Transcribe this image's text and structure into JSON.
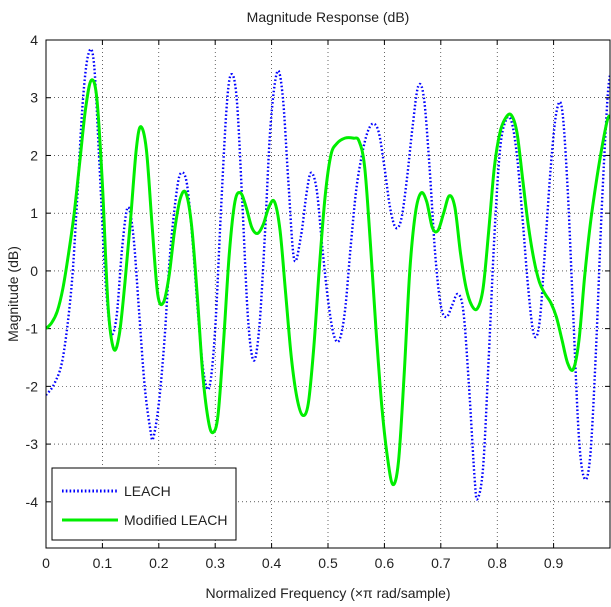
{
  "chart_data": {
    "type": "line",
    "title": "Magnitude Response (dB)",
    "xlabel": "Normalized Frequency (×π rad/sample)",
    "ylabel": "Magnitude (dB)",
    "xlim": [
      0,
      1
    ],
    "ylim": [
      -4.8,
      4
    ],
    "x_ticks": [
      0,
      0.1,
      0.2,
      0.3,
      0.4,
      0.5,
      0.6,
      0.7,
      0.8,
      0.9
    ],
    "x_tick_labels": [
      "0",
      "0.1",
      "0.2",
      "0.3",
      "0.4",
      "0.5",
      "0.6",
      "0.7",
      "0.8",
      "0.9"
    ],
    "y_ticks": [
      4,
      3,
      2,
      1,
      0,
      -1,
      -2,
      -3,
      -4
    ],
    "y_tick_labels": [
      "4",
      "3",
      "2",
      "1",
      "0",
      "-1",
      "-2",
      "-3",
      "-4"
    ],
    "grid": true,
    "legend_position": "bottom-left",
    "series": [
      {
        "name": "LEACH",
        "color": "#0000ff",
        "style": "dotted",
        "points": [
          [
            0.0,
            -2.15
          ],
          [
            0.015,
            -1.95
          ],
          [
            0.03,
            -1.5
          ],
          [
            0.045,
            -0.3
          ],
          [
            0.055,
            1.2
          ],
          [
            0.065,
            2.9
          ],
          [
            0.075,
            3.75
          ],
          [
            0.085,
            3.6
          ],
          [
            0.095,
            1.8
          ],
          [
            0.105,
            -0.1
          ],
          [
            0.115,
            -1.05
          ],
          [
            0.125,
            -0.8
          ],
          [
            0.135,
            0.4
          ],
          [
            0.145,
            1.1
          ],
          [
            0.155,
            0.6
          ],
          [
            0.165,
            -0.7
          ],
          [
            0.175,
            -2.0
          ],
          [
            0.185,
            -2.75
          ],
          [
            0.19,
            -2.9
          ],
          [
            0.2,
            -2.3
          ],
          [
            0.21,
            -1.2
          ],
          [
            0.22,
            0.3
          ],
          [
            0.232,
            1.4
          ],
          [
            0.24,
            1.7
          ],
          [
            0.25,
            1.5
          ],
          [
            0.26,
            0.5
          ],
          [
            0.27,
            -0.8
          ],
          [
            0.28,
            -1.8
          ],
          [
            0.29,
            -2.0
          ],
          [
            0.3,
            -1.0
          ],
          [
            0.31,
            1.0
          ],
          [
            0.32,
            2.8
          ],
          [
            0.328,
            3.4
          ],
          [
            0.338,
            3.0
          ],
          [
            0.348,
            1.2
          ],
          [
            0.358,
            -0.8
          ],
          [
            0.368,
            -1.55
          ],
          [
            0.378,
            -1.0
          ],
          [
            0.388,
            0.6
          ],
          [
            0.398,
            2.5
          ],
          [
            0.41,
            3.45
          ],
          [
            0.42,
            3.0
          ],
          [
            0.43,
            1.5
          ],
          [
            0.44,
            0.2
          ],
          [
            0.452,
            0.6
          ],
          [
            0.462,
            1.35
          ],
          [
            0.47,
            1.7
          ],
          [
            0.48,
            1.4
          ],
          [
            0.49,
            0.4
          ],
          [
            0.5,
            -0.5
          ],
          [
            0.51,
            -1.1
          ],
          [
            0.52,
            -1.2
          ],
          [
            0.53,
            -0.7
          ],
          [
            0.54,
            0.4
          ],
          [
            0.55,
            1.4
          ],
          [
            0.56,
            2.0
          ],
          [
            0.57,
            2.4
          ],
          [
            0.58,
            2.55
          ],
          [
            0.59,
            2.4
          ],
          [
            0.6,
            1.8
          ],
          [
            0.61,
            1.1
          ],
          [
            0.62,
            0.75
          ],
          [
            0.63,
            0.9
          ],
          [
            0.64,
            1.6
          ],
          [
            0.65,
            2.5
          ],
          [
            0.66,
            3.2
          ],
          [
            0.67,
            3.0
          ],
          [
            0.68,
            1.8
          ],
          [
            0.69,
            0.3
          ],
          [
            0.7,
            -0.6
          ],
          [
            0.71,
            -0.8
          ],
          [
            0.72,
            -0.6
          ],
          [
            0.73,
            -0.4
          ],
          [
            0.74,
            -0.7
          ],
          [
            0.75,
            -2.0
          ],
          [
            0.76,
            -3.6
          ],
          [
            0.765,
            -3.95
          ],
          [
            0.775,
            -3.4
          ],
          [
            0.785,
            -1.5
          ],
          [
            0.795,
            0.6
          ],
          [
            0.805,
            2.1
          ],
          [
            0.815,
            2.6
          ],
          [
            0.825,
            2.6
          ],
          [
            0.835,
            2.0
          ],
          [
            0.845,
            0.9
          ],
          [
            0.855,
            -0.3
          ],
          [
            0.865,
            -1.1
          ],
          [
            0.875,
            -0.9
          ],
          [
            0.885,
            0.4
          ],
          [
            0.895,
            1.8
          ],
          [
            0.905,
            2.75
          ],
          [
            0.915,
            2.8
          ],
          [
            0.925,
            1.4
          ],
          [
            0.935,
            -0.8
          ],
          [
            0.945,
            -2.9
          ],
          [
            0.955,
            -3.6
          ],
          [
            0.965,
            -3.2
          ],
          [
            0.975,
            -1.4
          ],
          [
            0.985,
            1.0
          ],
          [
            0.995,
            2.9
          ],
          [
            1.0,
            3.4
          ]
        ]
      },
      {
        "name": "Modified LEACH",
        "color": "#00ee00",
        "style": "solid",
        "points": [
          [
            0.0,
            -1.0
          ],
          [
            0.01,
            -0.9
          ],
          [
            0.02,
            -0.7
          ],
          [
            0.03,
            -0.3
          ],
          [
            0.04,
            0.3
          ],
          [
            0.05,
            1.0
          ],
          [
            0.06,
            1.9
          ],
          [
            0.07,
            2.8
          ],
          [
            0.08,
            3.3
          ],
          [
            0.09,
            3.0
          ],
          [
            0.1,
            1.5
          ],
          [
            0.11,
            -0.6
          ],
          [
            0.12,
            -1.35
          ],
          [
            0.13,
            -1.1
          ],
          [
            0.14,
            -0.2
          ],
          [
            0.15,
            0.9
          ],
          [
            0.16,
            2.1
          ],
          [
            0.168,
            2.5
          ],
          [
            0.178,
            2.1
          ],
          [
            0.188,
            0.8
          ],
          [
            0.198,
            -0.4
          ],
          [
            0.208,
            -0.55
          ],
          [
            0.218,
            -0.1
          ],
          [
            0.228,
            0.7
          ],
          [
            0.238,
            1.25
          ],
          [
            0.248,
            1.35
          ],
          [
            0.258,
            0.8
          ],
          [
            0.268,
            -0.4
          ],
          [
            0.278,
            -1.8
          ],
          [
            0.288,
            -2.6
          ],
          [
            0.296,
            -2.8
          ],
          [
            0.305,
            -2.5
          ],
          [
            0.315,
            -1.2
          ],
          [
            0.325,
            0.3
          ],
          [
            0.335,
            1.2
          ],
          [
            0.345,
            1.35
          ],
          [
            0.355,
            1.1
          ],
          [
            0.365,
            0.75
          ],
          [
            0.375,
            0.65
          ],
          [
            0.385,
            0.8
          ],
          [
            0.395,
            1.1
          ],
          [
            0.405,
            1.2
          ],
          [
            0.415,
            0.7
          ],
          [
            0.425,
            -0.4
          ],
          [
            0.435,
            -1.5
          ],
          [
            0.445,
            -2.2
          ],
          [
            0.455,
            -2.5
          ],
          [
            0.465,
            -2.3
          ],
          [
            0.475,
            -1.3
          ],
          [
            0.485,
            0.1
          ],
          [
            0.495,
            1.3
          ],
          [
            0.505,
            2.0
          ],
          [
            0.515,
            2.2
          ],
          [
            0.53,
            2.3
          ],
          [
            0.545,
            2.3
          ],
          [
            0.555,
            2.25
          ],
          [
            0.565,
            1.8
          ],
          [
            0.575,
            0.5
          ],
          [
            0.585,
            -1.0
          ],
          [
            0.595,
            -2.3
          ],
          [
            0.605,
            -3.2
          ],
          [
            0.615,
            -3.7
          ],
          [
            0.625,
            -3.3
          ],
          [
            0.635,
            -1.8
          ],
          [
            0.645,
            0.0
          ],
          [
            0.655,
            1.0
          ],
          [
            0.665,
            1.35
          ],
          [
            0.675,
            1.2
          ],
          [
            0.685,
            0.75
          ],
          [
            0.695,
            0.7
          ],
          [
            0.705,
            1.0
          ],
          [
            0.715,
            1.3
          ],
          [
            0.725,
            1.1
          ],
          [
            0.735,
            0.3
          ],
          [
            0.745,
            -0.3
          ],
          [
            0.755,
            -0.6
          ],
          [
            0.765,
            -0.65
          ],
          [
            0.775,
            -0.3
          ],
          [
            0.785,
            0.7
          ],
          [
            0.795,
            1.8
          ],
          [
            0.805,
            2.4
          ],
          [
            0.815,
            2.65
          ],
          [
            0.825,
            2.7
          ],
          [
            0.835,
            2.4
          ],
          [
            0.845,
            1.6
          ],
          [
            0.855,
            0.8
          ],
          [
            0.865,
            0.2
          ],
          [
            0.875,
            -0.2
          ],
          [
            0.885,
            -0.4
          ],
          [
            0.895,
            -0.55
          ],
          [
            0.905,
            -0.8
          ],
          [
            0.915,
            -1.2
          ],
          [
            0.925,
            -1.6
          ],
          [
            0.935,
            -1.7
          ],
          [
            0.945,
            -1.2
          ],
          [
            0.955,
            -0.1
          ],
          [
            0.965,
            0.8
          ],
          [
            0.975,
            1.5
          ],
          [
            0.985,
            2.1
          ],
          [
            0.995,
            2.6
          ],
          [
            1.0,
            2.7
          ]
        ]
      }
    ]
  }
}
